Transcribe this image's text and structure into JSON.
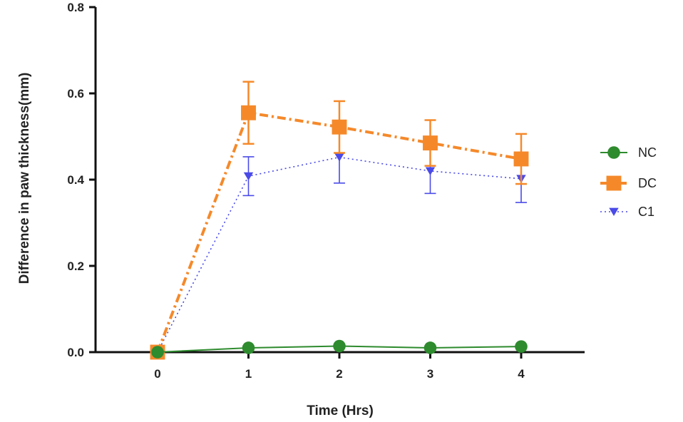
{
  "chart_data": {
    "type": "line",
    "title": "",
    "xlabel": "Time (Hrs)",
    "ylabel": "Difference in paw thickness(mm)",
    "x": [
      0,
      1,
      2,
      3,
      4
    ],
    "x_tick_labels": [
      "0",
      "1",
      "2",
      "3",
      "4"
    ],
    "y_tick_labels": [
      "0.0",
      "0.2",
      "0.4",
      "0.6",
      "0.8"
    ],
    "xlim": [
      -0.8,
      4.7
    ],
    "ylim": [
      0,
      0.8
    ],
    "grid": false,
    "legend_position": "right",
    "series": [
      {
        "name": "NC",
        "values": [
          0.0,
          0.01,
          0.014,
          0.01,
          0.013
        ],
        "errors": [
          0,
          0,
          0,
          0,
          0
        ],
        "color": "#2e8b2e",
        "marker": "circle",
        "line_style": "solid"
      },
      {
        "name": "DC",
        "values": [
          0.0,
          0.555,
          0.522,
          0.485,
          0.448
        ],
        "errors": [
          0,
          0.072,
          0.06,
          0.053,
          0.058
        ],
        "color": "#f5892a",
        "marker": "square",
        "line_style": "dashdot"
      },
      {
        "name": "C1",
        "values": [
          0.0,
          0.408,
          0.452,
          0.42,
          0.402
        ],
        "errors": [
          0,
          0.045,
          0.06,
          0.052,
          0.055
        ],
        "color": "#4a4ae8",
        "marker": "triangle-down",
        "line_style": "dotted"
      }
    ]
  }
}
